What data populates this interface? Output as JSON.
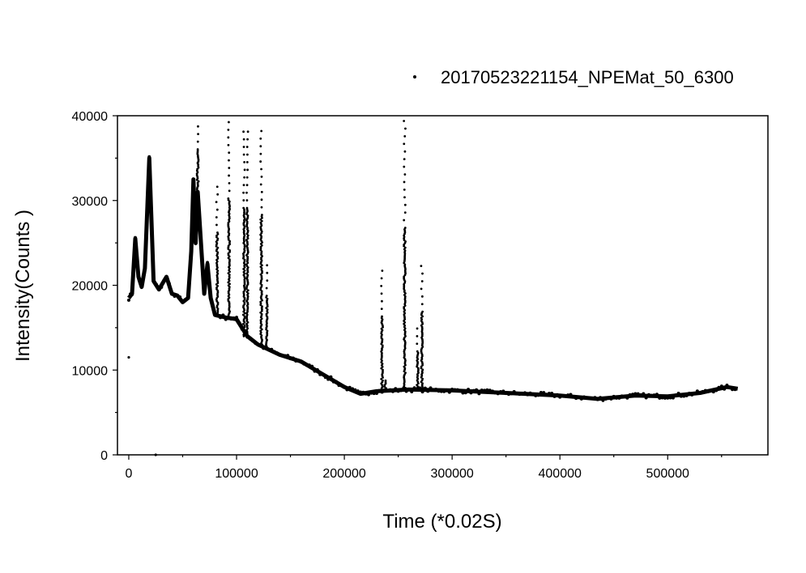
{
  "chart_data": {
    "type": "scatter",
    "xlabel": "Time (*0.02S)",
    "ylabel": "Intensity(Counts )",
    "xlim": [
      -10500,
      593000
    ],
    "ylim": [
      0,
      40000
    ],
    "xticks": [
      0,
      100000,
      200000,
      300000,
      400000,
      500000
    ],
    "xtick_labels": [
      "0",
      "100000",
      "200000",
      "300000",
      "400000",
      "500000"
    ],
    "yticks": [
      0,
      10000,
      20000,
      30000,
      40000
    ],
    "ytick_labels": [
      "0",
      "10000",
      "20000",
      "30000",
      "40000"
    ],
    "grid": false,
    "legend_position": "top-right",
    "series": [
      {
        "name": "20170523221154_NPEMat_50_6300",
        "color": "#000000",
        "baseline": [
          [
            0,
            18500
          ],
          [
            3000,
            19000
          ],
          [
            6000,
            25500
          ],
          [
            9000,
            21000
          ],
          [
            12000,
            19800
          ],
          [
            15000,
            22000
          ],
          [
            19000,
            35000
          ],
          [
            23000,
            20500
          ],
          [
            28000,
            19500
          ],
          [
            35000,
            21000
          ],
          [
            40000,
            19000
          ],
          [
            45000,
            18800
          ],
          [
            50000,
            18000
          ],
          [
            55000,
            18500
          ],
          [
            58000,
            24000
          ],
          [
            60000,
            32500
          ],
          [
            62000,
            25000
          ],
          [
            64000,
            31000
          ],
          [
            67000,
            25000
          ],
          [
            70000,
            19000
          ],
          [
            73000,
            22500
          ],
          [
            76000,
            18500
          ],
          [
            80000,
            16500
          ],
          [
            90000,
            16200
          ],
          [
            100000,
            16000
          ],
          [
            110000,
            14000
          ],
          [
            120000,
            13000
          ],
          [
            140000,
            11800
          ],
          [
            160000,
            11000
          ],
          [
            180000,
            9500
          ],
          [
            200000,
            8000
          ],
          [
            215000,
            7200
          ],
          [
            230000,
            7500
          ],
          [
            260000,
            7700
          ],
          [
            300000,
            7600
          ],
          [
            350000,
            7300
          ],
          [
            400000,
            7000
          ],
          [
            435000,
            6600
          ],
          [
            470000,
            7000
          ],
          [
            500000,
            6900
          ],
          [
            530000,
            7300
          ],
          [
            555000,
            8000
          ],
          [
            565000,
            7800
          ]
        ],
        "spikes": [
          [
            64000,
            39200
          ],
          [
            82000,
            32500
          ],
          [
            93000,
            39500
          ],
          [
            107000,
            39000
          ],
          [
            110000,
            39000
          ],
          [
            123000,
            38500
          ],
          [
            128000,
            22500
          ],
          [
            235000,
            22000
          ],
          [
            238000,
            9500
          ],
          [
            256000,
            39500
          ],
          [
            268000,
            15000
          ],
          [
            272000,
            23000
          ]
        ],
        "outliers": [
          [
            0,
            11500
          ],
          [
            25000,
            0
          ]
        ]
      }
    ]
  }
}
